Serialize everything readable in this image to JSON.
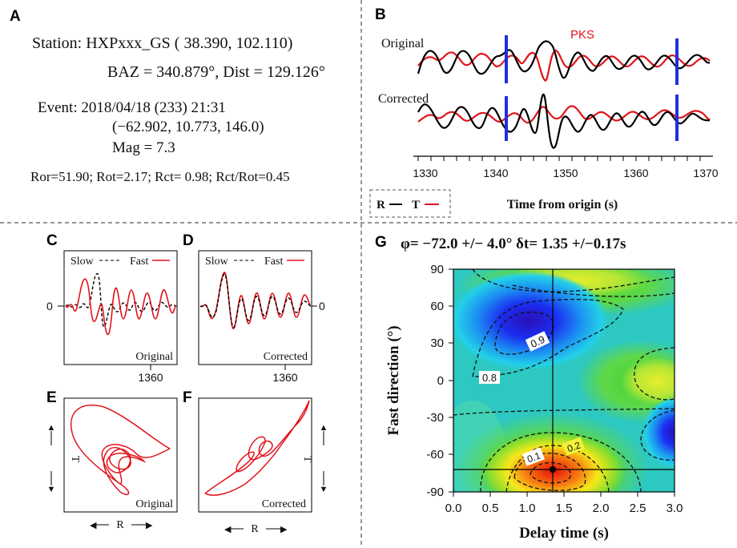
{
  "panels": {
    "A": {
      "label": "A",
      "station_line": "Station: HXPxxx_GS ( 38.390,  102.110)",
      "baz_line": "BAZ = 340.879°, Dist = 129.126°",
      "event_line": "Event: 2018/04/18 (233)  21:31",
      "coords_line": "(−62.902, 10.773, 146.0)",
      "mag_line": "Mag = 7.3",
      "ratios_line": "Ror=51.90; Rot=2.17; Rct= 0.98; Rct/Rot=0.45"
    },
    "B": {
      "label": "B",
      "original_label": "Original",
      "corrected_label": "Corrected",
      "phase_label": "PKS",
      "xlabel": "Time from origin (s)",
      "ticks": [
        "1330",
        "1340",
        "1350",
        "1360",
        "1370"
      ],
      "legend_r": "R",
      "legend_t": "T"
    },
    "C": {
      "label": "C",
      "slow_label": "Slow",
      "fast_label": "Fast",
      "zero_label": "0",
      "tick_label": "1360",
      "caption": "Original"
    },
    "D": {
      "label": "D",
      "slow_label": "Slow",
      "fast_label": "Fast",
      "zero_label": "0",
      "tick_label": "1360",
      "caption": "Corrected"
    },
    "E": {
      "label": "E",
      "caption": "Original",
      "axis_t": "T",
      "axis_r": "R"
    },
    "F": {
      "label": "F",
      "caption": "Corrected",
      "axis_t": "T",
      "axis_r": "R"
    },
    "G": {
      "label": "G",
      "title": "φ= −72.0 +/− 4.0°  δt= 1.35 +/−0.17s",
      "ylabel": "Fast direction (°)",
      "xlabel": "Delay time (s)",
      "yticks": [
        "90",
        "60",
        "30",
        "0",
        "-30",
        "-60",
        "-90"
      ],
      "xticks": [
        "0.0",
        "0.5",
        "1.0",
        "1.5",
        "2.0",
        "2.5",
        "3.0"
      ],
      "contour_labels": [
        "0.9",
        "0.8",
        "0.2",
        "0.1"
      ]
    }
  },
  "chart_data": [
    {
      "type": "line",
      "panel": "B",
      "title": "",
      "xlabel": "Time from origin (s)",
      "xlim": [
        1328,
        1373
      ],
      "series": [
        {
          "name": "R",
          "color": "#000000"
        },
        {
          "name": "T",
          "color": "#e0141b"
        }
      ],
      "window_markers_s": [
        1342,
        1367
      ],
      "phase": "PKS"
    },
    {
      "type": "heatmap",
      "panel": "G",
      "xlabel": "Delay time (s)",
      "ylabel": "Fast direction (°)",
      "xlim": [
        0,
        3
      ],
      "ylim": [
        -90,
        90
      ],
      "best_fit": {
        "delay_s": 1.35,
        "delay_err_s": 0.17,
        "phi_deg": -72.0,
        "phi_err_deg": 4.0
      },
      "contour_levels": [
        0.1,
        0.2,
        0.8,
        0.9
      ]
    }
  ],
  "colors": {
    "trace_r": "#000000",
    "trace_t": "#e0141b",
    "window": "#1f2fe0",
    "divider": "#555555"
  }
}
